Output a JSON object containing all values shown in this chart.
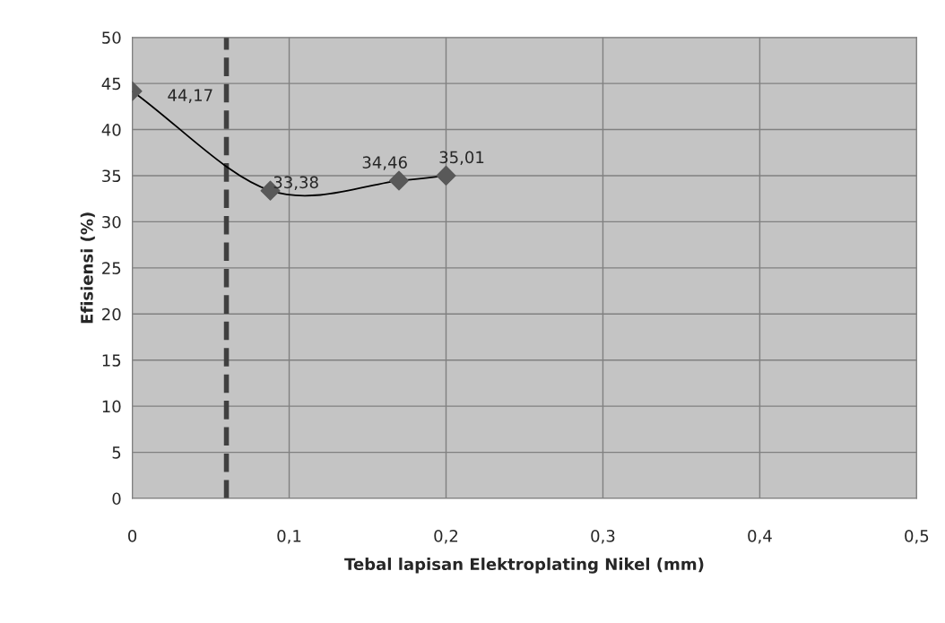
{
  "chart_data": {
    "type": "line",
    "xlabel": "Tebal lapisan Elektroplating Nikel (mm)",
    "ylabel": "Efisiensi (%)",
    "x": [
      0,
      0.088,
      0.17,
      0.2
    ],
    "series": [
      {
        "color": "#595959",
        "values": [
          44.17,
          33.38,
          34.46,
          35.01
        ],
        "value_labels": [
          "44,17",
          "33,38",
          "34,46",
          "35,01"
        ]
      }
    ],
    "xlim": [
      0,
      0.5
    ],
    "ylim": [
      0,
      50
    ],
    "xticks": [
      0,
      {
        "value": 0.1,
        "label": "0,1"
      },
      {
        "value": 0.2,
        "label": "0,2"
      },
      {
        "value": 0.3,
        "label": "0,3"
      },
      {
        "value": 0.4,
        "label": "0,4"
      },
      {
        "value": 0.5,
        "label": "0,5"
      }
    ],
    "yticks": [
      0,
      5,
      10,
      15,
      20,
      25,
      30,
      35,
      40,
      45,
      50
    ],
    "ref_lines": [
      {
        "axis": "x",
        "value": 0.06,
        "color": "#404040",
        "line_style": "dashed"
      }
    ],
    "grid": true,
    "marker": "diamond"
  }
}
